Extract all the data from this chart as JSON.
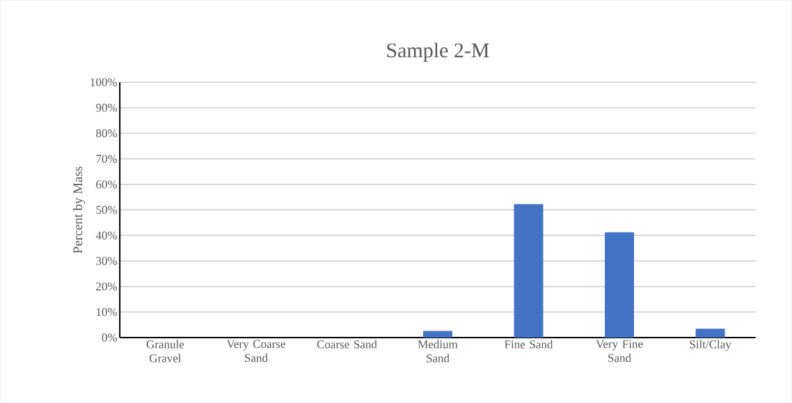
{
  "chart_data": {
    "type": "bar",
    "title": "Sample 2-M",
    "ylabel": "Percent by Mass",
    "categories": [
      "Granule Gravel",
      "Very Coarse Sand",
      "Coarse Sand",
      "Medium Sand",
      "Fine Sand",
      "Very Fine Sand",
      "Silt/Clay"
    ],
    "values": [
      0,
      0,
      0,
      2.6,
      52.3,
      41.2,
      3.5
    ],
    "color": "#4472c4",
    "ylim": [
      0,
      100
    ],
    "yticks": [
      {
        "value": 0,
        "label": "0%"
      },
      {
        "value": 10,
        "label": "10%"
      },
      {
        "value": 20,
        "label": "20%"
      },
      {
        "value": 30,
        "label": "30%"
      },
      {
        "value": 40,
        "label": "40%"
      },
      {
        "value": 50,
        "label": "50%"
      },
      {
        "value": 60,
        "label": "60%"
      },
      {
        "value": 70,
        "label": "70%"
      },
      {
        "value": 80,
        "label": "80%"
      },
      {
        "value": 90,
        "label": "90%"
      },
      {
        "value": 100,
        "label": "100%"
      }
    ],
    "grid": "y"
  }
}
